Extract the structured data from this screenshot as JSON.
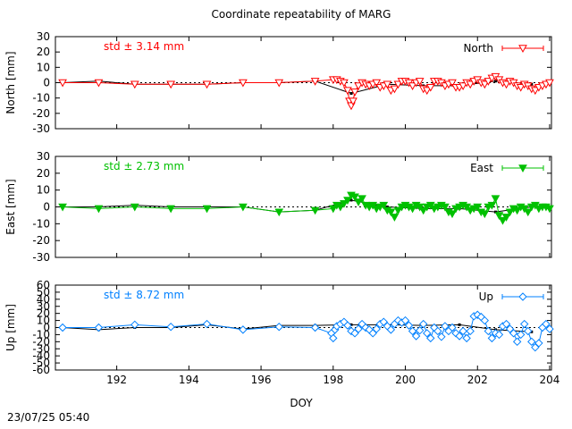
{
  "timestamp": "23/07/25 05:40",
  "chart_data": {
    "type": "line",
    "title": "Coordinate repeatability of MARG",
    "xlabel": "DOY",
    "xlim": [
      190.3,
      204.05
    ],
    "xticks": [
      192,
      194,
      196,
      198,
      200,
      202,
      204
    ],
    "reference_color": "#000000",
    "panels": [
      {
        "id": "north",
        "ylabel": "North [mm]",
        "ylim": [
          -30,
          30
        ],
        "yticks": [
          -30,
          -20,
          -10,
          0,
          10,
          20,
          30
        ],
        "std_label": "std ± 3.14 mm",
        "legend": "North",
        "marker": "triangle-down-open",
        "color": "#ff0000",
        "daily": {
          "x": [
            190.5,
            191.5,
            192.5,
            193.5,
            194.5,
            195.5,
            196.5,
            197.5,
            198.5,
            199.5,
            200.5,
            201.5,
            202.5,
            203.5
          ],
          "y": [
            0,
            1,
            -1,
            -1,
            -1,
            0,
            0,
            1,
            -7,
            -1,
            -2,
            -2,
            1,
            -1
          ]
        },
        "series": {
          "x": [
            190.5,
            191.5,
            192.5,
            193.5,
            194.5,
            195.5,
            196.5,
            197.5,
            198.0,
            198.1,
            198.2,
            198.3,
            198.4,
            198.45,
            198.5,
            198.55,
            198.6,
            198.7,
            198.8,
            198.9,
            199.0,
            199.1,
            199.2,
            199.3,
            199.4,
            199.5,
            199.6,
            199.7,
            199.8,
            199.9,
            200.0,
            200.1,
            200.2,
            200.3,
            200.4,
            200.5,
            200.6,
            200.7,
            200.8,
            200.9,
            201.0,
            201.1,
            201.2,
            201.3,
            201.4,
            201.5,
            201.6,
            201.7,
            201.8,
            201.9,
            202.0,
            202.1,
            202.2,
            202.3,
            202.4,
            202.5,
            202.6,
            202.7,
            202.8,
            202.9,
            203.0,
            203.1,
            203.2,
            203.3,
            203.4,
            203.5,
            203.6,
            203.7,
            203.8,
            203.9,
            204.0
          ],
          "y": [
            0,
            0,
            -1,
            -1,
            -1,
            0,
            0,
            1,
            2,
            2,
            1,
            0,
            -5,
            -12,
            -15,
            -12,
            -6,
            -2,
            0,
            -1,
            -2,
            -1,
            0,
            -3,
            -2,
            -1,
            -5,
            -4,
            -1,
            1,
            1,
            0,
            -2,
            0,
            1,
            -4,
            -5,
            -3,
            1,
            1,
            0,
            -2,
            -1,
            0,
            -3,
            -3,
            -2,
            0,
            -1,
            1,
            2,
            0,
            -1,
            1,
            3,
            4,
            2,
            0,
            -1,
            1,
            0,
            -2,
            -3,
            -1,
            -2,
            -4,
            -5,
            -3,
            -2,
            -1,
            0
          ]
        }
      },
      {
        "id": "east",
        "ylabel": "East [mm]",
        "ylim": [
          -30,
          30
        ],
        "yticks": [
          -30,
          -20,
          -10,
          0,
          10,
          20,
          30
        ],
        "std_label": "std ± 2.73 mm",
        "legend": "East",
        "marker": "triangle-down-filled",
        "color": "#00c000",
        "daily": {
          "x": [
            190.5,
            191.5,
            192.5,
            193.5,
            194.5,
            195.5,
            196.5,
            197.5,
            198.5,
            199.5,
            200.5,
            201.5,
            202.5,
            203.5
          ],
          "y": [
            0,
            0,
            1,
            0,
            0,
            0,
            -3,
            -2,
            4,
            0,
            -1,
            -1,
            -3,
            0
          ]
        },
        "series": {
          "x": [
            190.5,
            191.5,
            192.5,
            193.5,
            194.5,
            195.5,
            196.5,
            197.5,
            198.0,
            198.1,
            198.2,
            198.3,
            198.4,
            198.5,
            198.6,
            198.7,
            198.8,
            198.9,
            199.0,
            199.1,
            199.2,
            199.3,
            199.4,
            199.5,
            199.6,
            199.7,
            199.8,
            199.9,
            200.0,
            200.1,
            200.2,
            200.3,
            200.4,
            200.5,
            200.6,
            200.7,
            200.8,
            200.9,
            201.0,
            201.1,
            201.2,
            201.3,
            201.4,
            201.5,
            201.6,
            201.7,
            201.8,
            201.9,
            202.0,
            202.1,
            202.2,
            202.3,
            202.4,
            202.5,
            202.6,
            202.7,
            202.8,
            202.9,
            203.0,
            203.1,
            203.2,
            203.3,
            203.4,
            203.5,
            203.6,
            203.7,
            203.8,
            203.9,
            204.0
          ],
          "y": [
            0,
            -1,
            0,
            -1,
            -1,
            0,
            -3,
            -2,
            -1,
            1,
            0,
            2,
            4,
            7,
            6,
            3,
            5,
            1,
            0,
            1,
            -1,
            0,
            1,
            -2,
            -3,
            -6,
            -2,
            0,
            1,
            0,
            -1,
            1,
            0,
            -2,
            0,
            1,
            -1,
            0,
            1,
            0,
            -3,
            -4,
            -1,
            0,
            1,
            0,
            -2,
            -1,
            0,
            -3,
            -4,
            0,
            1,
            5,
            -5,
            -8,
            -6,
            -3,
            -1,
            -2,
            0,
            -1,
            -3,
            0,
            1,
            -1,
            0,
            0,
            -1
          ]
        }
      },
      {
        "id": "up",
        "ylabel": "Up [mm]",
        "ylim": [
          -60,
          60
        ],
        "yticks": [
          -60,
          -50,
          -40,
          -30,
          -20,
          -10,
          0,
          10,
          20,
          30,
          40,
          50,
          60
        ],
        "std_label": "std ± 8.72 mm",
        "legend": "Up",
        "marker": "diamond-open",
        "color": "#0080ff",
        "daily": {
          "x": [
            190.5,
            191.5,
            192.5,
            193.5,
            194.5,
            195.5,
            196.5,
            197.5,
            198.5,
            199.5,
            200.5,
            201.5,
            202.5,
            203.5
          ],
          "y": [
            0,
            -3,
            0,
            0,
            4,
            -2,
            3,
            3,
            4,
            4,
            3,
            4,
            -3,
            -6
          ]
        },
        "series": {
          "x": [
            190.5,
            191.5,
            192.5,
            193.5,
            194.5,
            195.5,
            196.5,
            197.5,
            197.95,
            198.0,
            198.05,
            198.1,
            198.2,
            198.3,
            198.4,
            198.5,
            198.6,
            198.7,
            198.8,
            198.9,
            199.0,
            199.1,
            199.2,
            199.3,
            199.4,
            199.5,
            199.6,
            199.7,
            199.8,
            199.9,
            200.0,
            200.1,
            200.2,
            200.3,
            200.4,
            200.5,
            200.6,
            200.7,
            200.8,
            200.9,
            201.0,
            201.1,
            201.2,
            201.3,
            201.4,
            201.5,
            201.6,
            201.7,
            201.8,
            201.9,
            202.0,
            202.1,
            202.2,
            202.3,
            202.4,
            202.5,
            202.6,
            202.7,
            202.8,
            202.9,
            203.0,
            203.1,
            203.2,
            203.3,
            203.4,
            203.5,
            203.6,
            203.7,
            203.8,
            203.9,
            204.0
          ],
          "y": [
            0,
            0,
            4,
            1,
            5,
            -3,
            1,
            0,
            -8,
            -15,
            -3,
            2,
            5,
            8,
            3,
            -5,
            -8,
            -2,
            5,
            0,
            -3,
            -8,
            -2,
            5,
            8,
            2,
            -3,
            5,
            10,
            7,
            10,
            3,
            -5,
            -12,
            -4,
            5,
            -8,
            -15,
            0,
            -5,
            -13,
            2,
            -5,
            0,
            -8,
            -12,
            -5,
            -15,
            -5,
            16,
            18,
            15,
            10,
            -5,
            -15,
            -8,
            -10,
            2,
            5,
            -2,
            -8,
            -20,
            -10,
            5,
            -5,
            -20,
            -28,
            -22,
            0,
            5,
            -2
          ]
        }
      }
    ]
  }
}
